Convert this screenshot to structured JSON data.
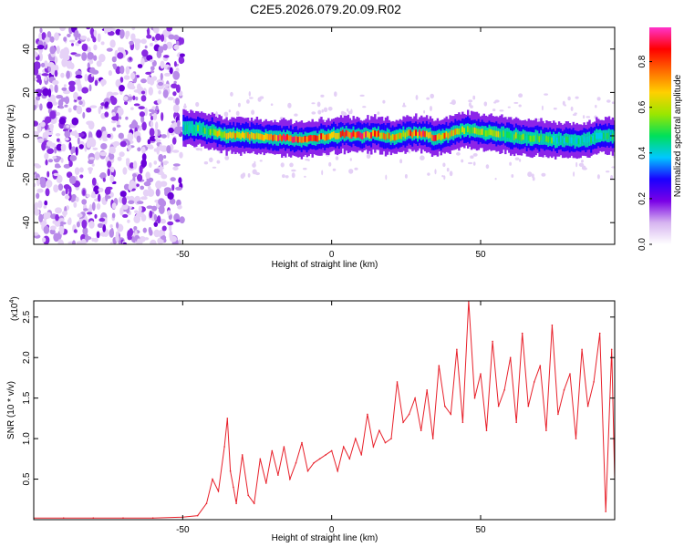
{
  "figure": {
    "title": "C2E5.2026.079.20.09.R02"
  },
  "chart_data": [
    {
      "type": "heatmap",
      "title": "C2E5.2026.079.20.09.R02",
      "xlabel": "Height of straight line (km)",
      "ylabel": "Frequency (Hz)",
      "xlim": [
        -100,
        95
      ],
      "ylim": [
        -50,
        50
      ],
      "xticks": [
        -50,
        0,
        50
      ],
      "xtick_labels": [
        "-50",
        "0",
        "50"
      ],
      "yticks": [
        -40,
        -20,
        0,
        20,
        40
      ],
      "ytick_labels": [
        "-40",
        "-20",
        "0",
        "20",
        "40"
      ],
      "colorbar": {
        "label": "Normalized spectral amplitude",
        "range": [
          0,
          0.95
        ],
        "ticks": [
          0.0,
          0.2,
          0.4,
          0.6,
          0.8
        ],
        "tick_labels": [
          "0.0",
          "0.2",
          "0.4",
          "0.6",
          "0.8"
        ],
        "colormap": [
          "#ffffff",
          "#d6b4f0",
          "#7a00e6",
          "#1a00ff",
          "#00c8ff",
          "#00e05a",
          "#9be600",
          "#ffd000",
          "#ff6a00",
          "#ff0000",
          "#ff33cc"
        ]
      },
      "noise_region_x": [
        -100,
        -50
      ],
      "signal_trace": {
        "x": [
          -50,
          -45,
          -40,
          -35,
          -30,
          -25,
          -20,
          -15,
          -10,
          -5,
          0,
          5,
          10,
          15,
          20,
          25,
          30,
          35,
          40,
          45,
          50,
          55,
          60,
          65,
          70,
          75,
          80,
          85,
          90,
          95
        ],
        "y": [
          4,
          3,
          2,
          0,
          0,
          0,
          -1,
          -1,
          -2,
          -1,
          0,
          1,
          0,
          1,
          -1,
          1,
          1,
          -1,
          1,
          3,
          2,
          1,
          0,
          -1,
          -1,
          -2,
          -2,
          -2,
          0,
          0
        ],
        "peak_amplitude": [
          0.45,
          0.5,
          0.6,
          0.75,
          0.7,
          0.8,
          0.85,
          0.9,
          0.85,
          0.8,
          0.75,
          0.85,
          0.9,
          0.8,
          0.7,
          0.75,
          0.85,
          0.8,
          0.7,
          0.6,
          0.65,
          0.6,
          0.55,
          0.55,
          0.5,
          0.5,
          0.45,
          0.5,
          0.45,
          0.5
        ]
      },
      "grid": false
    },
    {
      "type": "line",
      "xlabel": "Height of straight line (km)",
      "ylabel": "SNR (10 * v/v)",
      "y_multiplier_label": "(x10",
      "y_multiplier_exponent": "4",
      "y_multiplier_close": ")",
      "xlim": [
        -100,
        95
      ],
      "ylim": [
        0,
        2.7
      ],
      "xticks": [
        -50,
        0,
        50
      ],
      "xtick_labels": [
        "-50",
        "0",
        "50"
      ],
      "yticks": [
        0.5,
        1.0,
        1.5,
        2.0,
        2.5
      ],
      "ytick_labels": [
        "0.5",
        "1.0",
        "1.5",
        "2.0",
        "2.5"
      ],
      "color": "#e8202a",
      "grid": false,
      "series": [
        {
          "x": [
            -100,
            -90,
            -80,
            -70,
            -60,
            -50,
            -45,
            -42,
            -40,
            -38,
            -36,
            -35,
            -34,
            -33,
            -32,
            -30,
            -28,
            -26,
            -24,
            -22,
            -20,
            -18,
            -16,
            -14,
            -12,
            -10,
            -8,
            -6,
            -4,
            -2,
            0,
            2,
            4,
            6,
            8,
            10,
            12,
            14,
            16,
            18,
            20,
            22,
            24,
            26,
            28,
            30,
            32,
            34,
            36,
            38,
            40,
            42,
            44,
            46,
            48,
            50,
            52,
            54,
            56,
            58,
            60,
            62,
            64,
            66,
            68,
            70,
            72,
            74,
            76,
            78,
            80,
            82,
            84,
            86,
            88,
            90,
            92,
            94,
            95
          ],
          "y": [
            0.02,
            0.02,
            0.02,
            0.02,
            0.02,
            0.03,
            0.05,
            0.2,
            0.5,
            0.35,
            0.9,
            1.25,
            0.6,
            0.4,
            0.2,
            0.8,
            0.3,
            0.2,
            0.75,
            0.45,
            0.85,
            0.55,
            0.9,
            0.5,
            0.7,
            0.95,
            0.6,
            0.7,
            0.75,
            0.8,
            0.85,
            0.6,
            0.9,
            0.75,
            1.0,
            0.8,
            1.3,
            0.9,
            1.1,
            0.95,
            1.0,
            1.7,
            1.2,
            1.3,
            1.5,
            1.1,
            1.6,
            1.0,
            1.9,
            1.4,
            1.3,
            2.1,
            1.2,
            2.7,
            1.5,
            1.8,
            1.1,
            2.2,
            1.4,
            1.6,
            2.0,
            1.2,
            2.3,
            1.4,
            1.7,
            1.9,
            1.1,
            2.4,
            1.3,
            1.6,
            1.8,
            1.0,
            2.1,
            1.4,
            1.7,
            2.3,
            0.1,
            2.1,
            0.5
          ]
        }
      ]
    }
  ]
}
